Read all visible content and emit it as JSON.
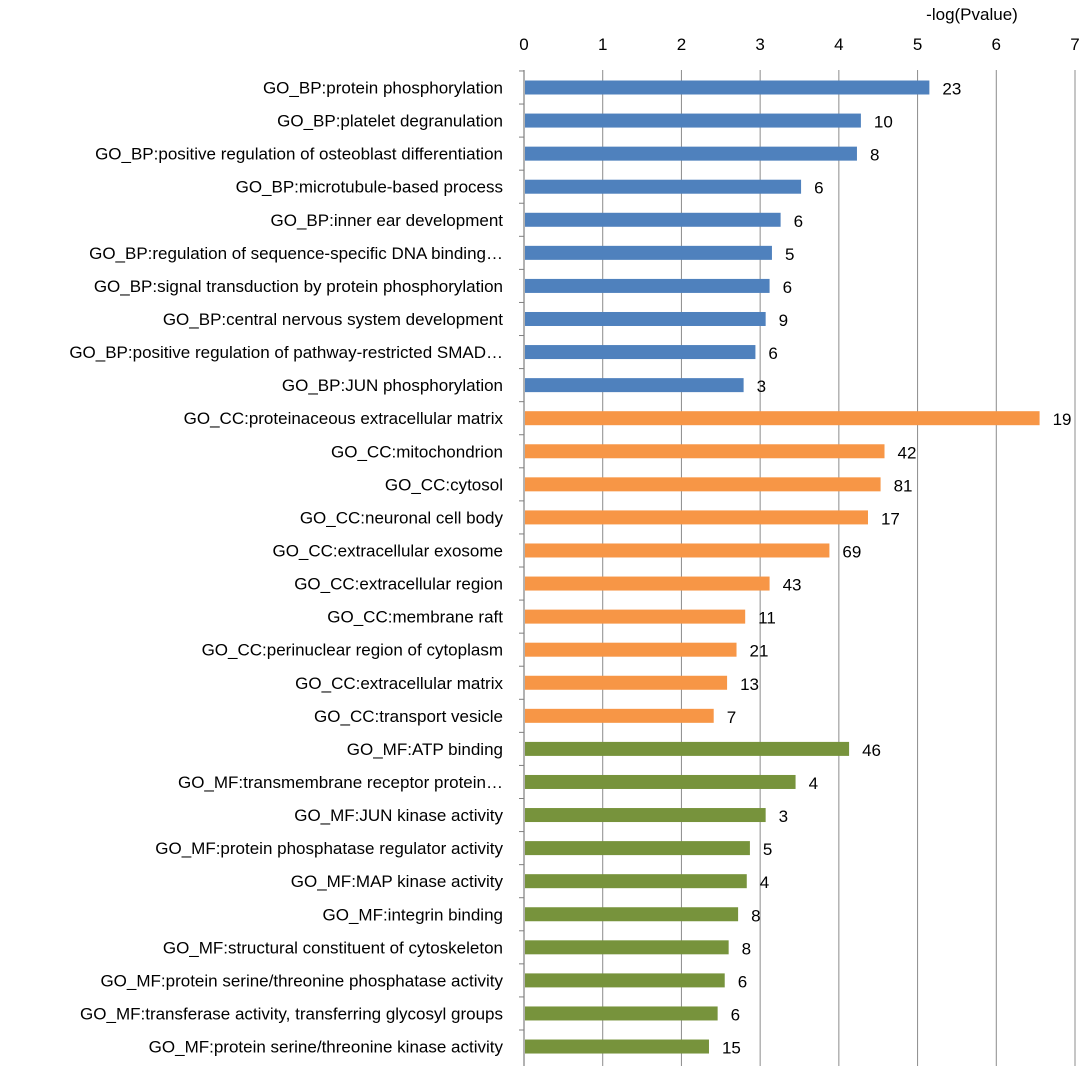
{
  "chart_data": {
    "type": "bar",
    "orientation": "horizontal",
    "xlabel": "-log(Pvalue)",
    "xlim": [
      0,
      7
    ],
    "xticks": [
      0,
      1,
      2,
      3,
      4,
      5,
      6,
      7
    ],
    "grid": true,
    "axis_position": "top",
    "group_colors": {
      "BP": "#4f81bd",
      "CC": "#f79646",
      "MF": "#77933c"
    },
    "bars": [
      {
        "label": "GO_BP:protein phosphorylation",
        "group": "BP",
        "value": 5.15,
        "count": "23"
      },
      {
        "label": "GO_BP:platelet degranulation",
        "group": "BP",
        "value": 4.28,
        "count": "10"
      },
      {
        "label": "GO_BP:positive regulation of osteoblast differentiation",
        "group": "BP",
        "value": 4.23,
        "count": "8"
      },
      {
        "label": "GO_BP:microtubule-based process",
        "group": "BP",
        "value": 3.52,
        "count": "6"
      },
      {
        "label": "GO_BP:inner ear development",
        "group": "BP",
        "value": 3.26,
        "count": "6"
      },
      {
        "label": "GO_BP:regulation of sequence-specific DNA binding…",
        "group": "BP",
        "value": 3.15,
        "count": "5"
      },
      {
        "label": "GO_BP:signal transduction by protein phosphorylation",
        "group": "BP",
        "value": 3.12,
        "count": "6"
      },
      {
        "label": "GO_BP:central nervous system development",
        "group": "BP",
        "value": 3.07,
        "count": "9"
      },
      {
        "label": "GO_BP:positive regulation of pathway-restricted SMAD…",
        "group": "BP",
        "value": 2.94,
        "count": "6"
      },
      {
        "label": "GO_BP:JUN phosphorylation",
        "group": "BP",
        "value": 2.79,
        "count": "3"
      },
      {
        "label": "GO_CC:proteinaceous extracellular matrix",
        "group": "CC",
        "value": 6.55,
        "count": "19"
      },
      {
        "label": "GO_CC:mitochondrion",
        "group": "CC",
        "value": 4.58,
        "count": "42"
      },
      {
        "label": "GO_CC:cytosol",
        "group": "CC",
        "value": 4.53,
        "count": "81"
      },
      {
        "label": "GO_CC:neuronal cell body",
        "group": "CC",
        "value": 4.37,
        "count": "17"
      },
      {
        "label": "GO_CC:extracellular exosome",
        "group": "CC",
        "value": 3.88,
        "count": "69"
      },
      {
        "label": "GO_CC:extracellular region",
        "group": "CC",
        "value": 3.12,
        "count": "43"
      },
      {
        "label": "GO_CC:membrane raft",
        "group": "CC",
        "value": 2.81,
        "count": "11"
      },
      {
        "label": "GO_CC:perinuclear region of cytoplasm",
        "group": "CC",
        "value": 2.7,
        "count": "21"
      },
      {
        "label": "GO_CC:extracellular matrix",
        "group": "CC",
        "value": 2.58,
        "count": "13"
      },
      {
        "label": "GO_CC:transport vesicle",
        "group": "CC",
        "value": 2.41,
        "count": "7"
      },
      {
        "label": "GO_MF:ATP binding",
        "group": "MF",
        "value": 4.13,
        "count": "46"
      },
      {
        "label": "GO_MF:transmembrane receptor protein…",
        "group": "MF",
        "value": 3.45,
        "count": "4"
      },
      {
        "label": "GO_MF:JUN kinase activity",
        "group": "MF",
        "value": 3.07,
        "count": "3"
      },
      {
        "label": "GO_MF:protein phosphatase regulator activity",
        "group": "MF",
        "value": 2.87,
        "count": "5"
      },
      {
        "label": "GO_MF:MAP kinase activity",
        "group": "MF",
        "value": 2.83,
        "count": "4"
      },
      {
        "label": "GO_MF:integrin binding",
        "group": "MF",
        "value": 2.72,
        "count": "8"
      },
      {
        "label": "GO_MF:structural constituent of cytoskeleton",
        "group": "MF",
        "value": 2.6,
        "count": "8"
      },
      {
        "label": "GO_MF:protein serine/threonine phosphatase activity",
        "group": "MF",
        "value": 2.55,
        "count": "6"
      },
      {
        "label": "GO_MF:transferase activity, transferring glycosyl groups",
        "group": "MF",
        "value": 2.46,
        "count": "6"
      },
      {
        "label": "GO_MF:protein serine/threonine kinase activity",
        "group": "MF",
        "value": 2.35,
        "count": "15"
      }
    ]
  }
}
